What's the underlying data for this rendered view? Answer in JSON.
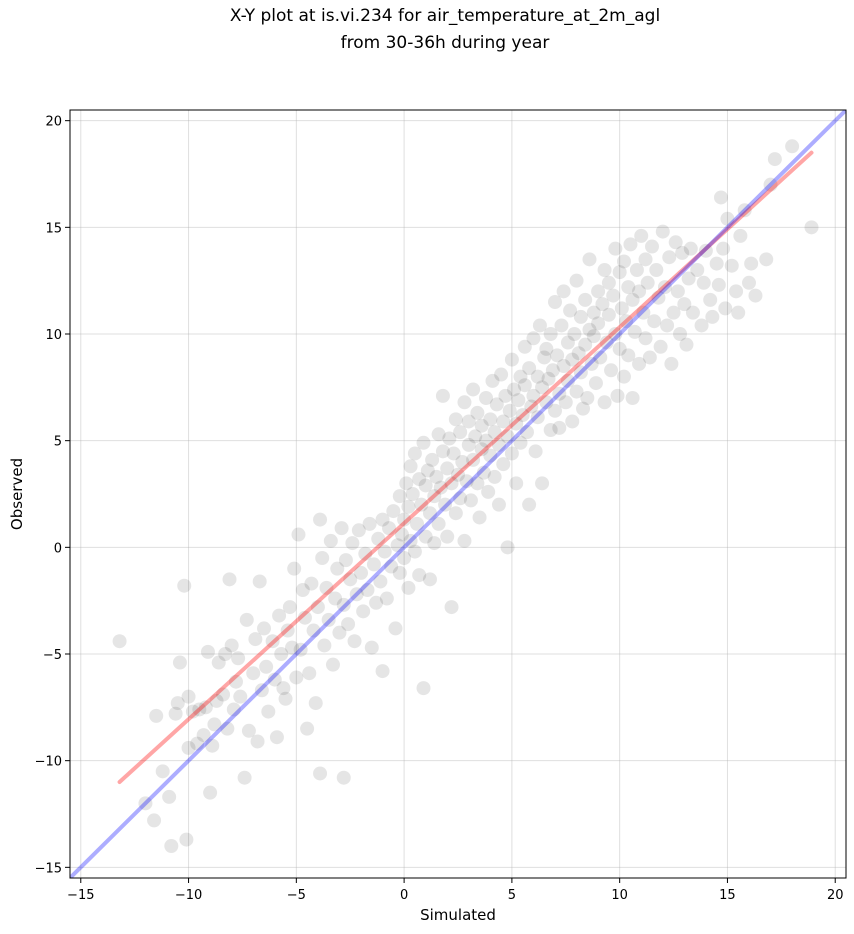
{
  "chart_data": {
    "type": "scatter",
    "title_lines": [
      "X-Y plot at is.vi.234 for air_temperature_at_2m_agl",
      "from 30-36h during year"
    ],
    "xlabel": "Simulated",
    "ylabel": "Observed",
    "xlim": [
      -15.5,
      20.5
    ],
    "ylim": [
      -15.5,
      20.5
    ],
    "x_ticks": [
      -15,
      -10,
      -5,
      0,
      5,
      10,
      15,
      20
    ],
    "y_ticks": [
      -15,
      -10,
      -5,
      0,
      5,
      10,
      15,
      20
    ],
    "x_tick_labels": [
      "−15",
      "−10",
      "−5",
      "0",
      "5",
      "10",
      "15",
      "20"
    ],
    "y_tick_labels": [
      "−15",
      "−10",
      "−5",
      "0",
      "5",
      "10",
      "15",
      "20"
    ],
    "grid": true,
    "point_color": "#000000",
    "point_alpha": 0.1,
    "points": [
      [
        -13.2,
        -4.4
      ],
      [
        -12.0,
        -12.0
      ],
      [
        -11.6,
        -12.8
      ],
      [
        -11.5,
        -7.9
      ],
      [
        -11.2,
        -10.5
      ],
      [
        -10.9,
        -11.7
      ],
      [
        -10.8,
        -14.0
      ],
      [
        -10.6,
        -7.8
      ],
      [
        -10.5,
        -7.3
      ],
      [
        -10.4,
        -5.4
      ],
      [
        -10.2,
        -1.8
      ],
      [
        -10.1,
        -13.7
      ],
      [
        -10.0,
        -9.4
      ],
      [
        -10.0,
        -7.0
      ],
      [
        -9.8,
        -7.7
      ],
      [
        -9.6,
        -9.2
      ],
      [
        -9.5,
        -7.6
      ],
      [
        -9.3,
        -8.8
      ],
      [
        -9.2,
        -7.5
      ],
      [
        -9.1,
        -4.9
      ],
      [
        -9.0,
        -11.5
      ],
      [
        -8.9,
        -9.3
      ],
      [
        -8.8,
        -8.3
      ],
      [
        -8.7,
        -7.2
      ],
      [
        -8.6,
        -5.4
      ],
      [
        -8.4,
        -6.9
      ],
      [
        -8.3,
        -5.0
      ],
      [
        -8.2,
        -8.5
      ],
      [
        -8.1,
        -1.5
      ],
      [
        -8.0,
        -4.6
      ],
      [
        -7.9,
        -7.6
      ],
      [
        -7.8,
        -6.3
      ],
      [
        -7.7,
        -5.2
      ],
      [
        -7.6,
        -7.0
      ],
      [
        -7.4,
        -10.8
      ],
      [
        -7.3,
        -3.4
      ],
      [
        -7.2,
        -8.6
      ],
      [
        -7.0,
        -5.9
      ],
      [
        -6.9,
        -4.3
      ],
      [
        -6.8,
        -9.1
      ],
      [
        -6.7,
        -1.6
      ],
      [
        -6.6,
        -6.7
      ],
      [
        -6.5,
        -3.8
      ],
      [
        -6.4,
        -5.6
      ],
      [
        -6.3,
        -7.7
      ],
      [
        -6.1,
        -4.4
      ],
      [
        -6.0,
        -6.2
      ],
      [
        -5.9,
        -8.9
      ],
      [
        -5.8,
        -3.2
      ],
      [
        -5.7,
        -5.0
      ],
      [
        -5.6,
        -6.6
      ],
      [
        -5.5,
        -7.1
      ],
      [
        -5.4,
        -3.9
      ],
      [
        -5.3,
        -2.8
      ],
      [
        -5.2,
        -4.7
      ],
      [
        -5.1,
        -1.0
      ],
      [
        -5.0,
        -6.1
      ],
      [
        -4.9,
        0.6
      ],
      [
        -4.8,
        -4.8
      ],
      [
        -4.7,
        -2.0
      ],
      [
        -4.6,
        -3.3
      ],
      [
        -4.5,
        -8.5
      ],
      [
        -4.4,
        -5.9
      ],
      [
        -4.3,
        -1.7
      ],
      [
        -4.2,
        -3.9
      ],
      [
        -4.1,
        -7.3
      ],
      [
        -4.0,
        -2.8
      ],
      [
        -3.9,
        -10.6
      ],
      [
        -3.9,
        1.3
      ],
      [
        -3.8,
        -0.5
      ],
      [
        -3.7,
        -4.6
      ],
      [
        -3.6,
        -1.9
      ],
      [
        -3.5,
        -3.4
      ],
      [
        -3.4,
        0.3
      ],
      [
        -3.3,
        -5.5
      ],
      [
        -3.2,
        -2.4
      ],
      [
        -3.1,
        -1.0
      ],
      [
        -3.0,
        -4.0
      ],
      [
        -2.9,
        0.9
      ],
      [
        -2.8,
        -10.8
      ],
      [
        -2.8,
        -2.7
      ],
      [
        -2.7,
        -0.6
      ],
      [
        -2.6,
        -3.6
      ],
      [
        -2.5,
        -1.5
      ],
      [
        -2.4,
        0.2
      ],
      [
        -2.3,
        -4.4
      ],
      [
        -2.2,
        -2.2
      ],
      [
        -2.1,
        0.8
      ],
      [
        -2.0,
        -1.2
      ],
      [
        -1.9,
        -3.0
      ],
      [
        -1.8,
        -0.3
      ],
      [
        -1.7,
        -2.0
      ],
      [
        -1.6,
        1.1
      ],
      [
        -1.5,
        -4.7
      ],
      [
        -1.4,
        -0.8
      ],
      [
        -1.3,
        -2.6
      ],
      [
        -1.2,
        0.4
      ],
      [
        -1.1,
        -1.6
      ],
      [
        -1.0,
        -5.8
      ],
      [
        -1.0,
        1.3
      ],
      [
        -0.9,
        -0.2
      ],
      [
        -0.8,
        -2.4
      ],
      [
        -0.7,
        0.9
      ],
      [
        -0.6,
        -0.9
      ],
      [
        -0.5,
        1.7
      ],
      [
        -0.4,
        -3.8
      ],
      [
        -0.3,
        0.1
      ],
      [
        -0.2,
        -1.2
      ],
      [
        -0.2,
        2.4
      ],
      [
        -0.1,
        0.6
      ],
      [
        0.0,
        1.3
      ],
      [
        0.0,
        -0.5
      ],
      [
        0.1,
        3.0
      ],
      [
        0.2,
        -1.9
      ],
      [
        0.2,
        1.9
      ],
      [
        0.3,
        0.3
      ],
      [
        0.3,
        3.8
      ],
      [
        0.4,
        2.5
      ],
      [
        0.5,
        -0.2
      ],
      [
        0.5,
        4.4
      ],
      [
        0.6,
        1.1
      ],
      [
        0.7,
        3.2
      ],
      [
        0.7,
        -1.3
      ],
      [
        0.8,
        2.0
      ],
      [
        0.9,
        -6.6
      ],
      [
        0.9,
        4.9
      ],
      [
        1.0,
        0.5
      ],
      [
        1.0,
        2.9
      ],
      [
        1.1,
        3.6
      ],
      [
        1.2,
        1.6
      ],
      [
        1.2,
        -1.5
      ],
      [
        1.3,
        4.1
      ],
      [
        1.4,
        2.4
      ],
      [
        1.4,
        0.2
      ],
      [
        1.5,
        3.3
      ],
      [
        1.6,
        5.3
      ],
      [
        1.6,
        1.1
      ],
      [
        1.7,
        2.8
      ],
      [
        1.8,
        4.5
      ],
      [
        1.8,
        7.1
      ],
      [
        1.9,
        2.0
      ],
      [
        2.0,
        3.7
      ],
      [
        2.0,
        0.5
      ],
      [
        2.1,
        5.1
      ],
      [
        2.2,
        3.0
      ],
      [
        2.2,
        -2.8
      ],
      [
        2.3,
        4.4
      ],
      [
        2.4,
        1.6
      ],
      [
        2.4,
        6.0
      ],
      [
        2.5,
        3.4
      ],
      [
        2.6,
        5.4
      ],
      [
        2.6,
        2.3
      ],
      [
        2.7,
        4.0
      ],
      [
        2.8,
        0.3
      ],
      [
        2.8,
        6.8
      ],
      [
        2.9,
        3.1
      ],
      [
        3.0,
        4.8
      ],
      [
        3.0,
        5.9
      ],
      [
        3.1,
        2.2
      ],
      [
        3.2,
        4.1
      ],
      [
        3.2,
        7.4
      ],
      [
        3.3,
        5.2
      ],
      [
        3.4,
        3.0
      ],
      [
        3.4,
        6.3
      ],
      [
        3.5,
        1.4
      ],
      [
        3.6,
        4.6
      ],
      [
        3.6,
        5.7
      ],
      [
        3.7,
        3.5
      ],
      [
        3.8,
        7.0
      ],
      [
        3.8,
        5.0
      ],
      [
        3.9,
        2.6
      ],
      [
        4.0,
        6.0
      ],
      [
        4.0,
        4.3
      ],
      [
        4.1,
        7.8
      ],
      [
        4.2,
        3.3
      ],
      [
        4.2,
        5.4
      ],
      [
        4.3,
        6.7
      ],
      [
        4.4,
        2.0
      ],
      [
        4.4,
        4.8
      ],
      [
        4.5,
        8.1
      ],
      [
        4.6,
        5.9
      ],
      [
        4.6,
        3.9
      ],
      [
        4.7,
        7.1
      ],
      [
        4.8,
        0.0
      ],
      [
        4.8,
        5.2
      ],
      [
        4.9,
        6.4
      ],
      [
        5.0,
        4.4
      ],
      [
        5.0,
        8.8
      ],
      [
        5.1,
        7.4
      ],
      [
        5.2,
        5.8
      ],
      [
        5.2,
        3.0
      ],
      [
        5.3,
        6.9
      ],
      [
        5.4,
        8.0
      ],
      [
        5.4,
        4.9
      ],
      [
        5.5,
        6.2
      ],
      [
        5.6,
        9.4
      ],
      [
        5.6,
        7.6
      ],
      [
        5.7,
        5.4
      ],
      [
        5.8,
        2.0
      ],
      [
        5.8,
        8.4
      ],
      [
        5.9,
        6.6
      ],
      [
        6.0,
        7.1
      ],
      [
        6.0,
        9.8
      ],
      [
        6.1,
        4.5
      ],
      [
        6.2,
        8.0
      ],
      [
        6.2,
        6.1
      ],
      [
        6.3,
        10.4
      ],
      [
        6.4,
        7.5
      ],
      [
        6.4,
        3.0
      ],
      [
        6.5,
        8.9
      ],
      [
        6.6,
        6.8
      ],
      [
        6.6,
        9.3
      ],
      [
        6.7,
        7.9
      ],
      [
        6.8,
        5.5
      ],
      [
        6.8,
        10.0
      ],
      [
        6.9,
        8.3
      ],
      [
        7.0,
        6.4
      ],
      [
        7.0,
        11.5
      ],
      [
        7.1,
        9.0
      ],
      [
        7.2,
        7.2
      ],
      [
        7.2,
        5.6
      ],
      [
        7.3,
        10.4
      ],
      [
        7.4,
        8.5
      ],
      [
        7.4,
        12.0
      ],
      [
        7.5,
        6.8
      ],
      [
        7.6,
        9.6
      ],
      [
        7.6,
        7.8
      ],
      [
        7.7,
        11.1
      ],
      [
        7.8,
        8.8
      ],
      [
        7.8,
        5.9
      ],
      [
        7.9,
        10.0
      ],
      [
        8.0,
        12.5
      ],
      [
        8.0,
        7.3
      ],
      [
        8.1,
        9.1
      ],
      [
        8.2,
        10.8
      ],
      [
        8.2,
        8.2
      ],
      [
        8.3,
        6.5
      ],
      [
        8.4,
        11.6
      ],
      [
        8.4,
        9.5
      ],
      [
        8.5,
        7.0
      ],
      [
        8.6,
        10.2
      ],
      [
        8.6,
        13.5
      ],
      [
        8.7,
        8.6
      ],
      [
        8.8,
        11.0
      ],
      [
        8.8,
        9.9
      ],
      [
        8.9,
        7.7
      ],
      [
        9.0,
        12.0
      ],
      [
        9.0,
        10.5
      ],
      [
        9.1,
        8.9
      ],
      [
        9.2,
        11.4
      ],
      [
        9.3,
        6.8
      ],
      [
        9.3,
        13.0
      ],
      [
        9.4,
        9.6
      ],
      [
        9.5,
        10.9
      ],
      [
        9.5,
        12.4
      ],
      [
        9.6,
        8.3
      ],
      [
        9.7,
        11.8
      ],
      [
        9.8,
        10.0
      ],
      [
        9.8,
        14.0
      ],
      [
        9.9,
        7.1
      ],
      [
        10.0,
        12.9
      ],
      [
        10.0,
        9.3
      ],
      [
        10.1,
        11.2
      ],
      [
        10.2,
        13.4
      ],
      [
        10.2,
        8.0
      ],
      [
        10.3,
        10.6
      ],
      [
        10.4,
        12.2
      ],
      [
        10.4,
        9.0
      ],
      [
        10.5,
        14.2
      ],
      [
        10.6,
        11.6
      ],
      [
        10.6,
        7.0
      ],
      [
        10.7,
        10.1
      ],
      [
        10.8,
        13.0
      ],
      [
        10.9,
        12.0
      ],
      [
        10.9,
        8.6
      ],
      [
        11.0,
        14.6
      ],
      [
        11.1,
        11.0
      ],
      [
        11.2,
        9.8
      ],
      [
        11.2,
        13.5
      ],
      [
        11.3,
        12.4
      ],
      [
        11.4,
        8.9
      ],
      [
        11.5,
        14.1
      ],
      [
        11.6,
        10.6
      ],
      [
        11.7,
        13.0
      ],
      [
        11.8,
        11.7
      ],
      [
        11.9,
        9.4
      ],
      [
        12.0,
        14.8
      ],
      [
        12.1,
        12.2
      ],
      [
        12.2,
        10.4
      ],
      [
        12.3,
        13.6
      ],
      [
        12.4,
        8.6
      ],
      [
        12.5,
        11.0
      ],
      [
        12.6,
        14.3
      ],
      [
        12.7,
        12.0
      ],
      [
        12.8,
        10.0
      ],
      [
        12.9,
        13.8
      ],
      [
        13.0,
        11.4
      ],
      [
        13.1,
        9.5
      ],
      [
        13.2,
        12.6
      ],
      [
        13.3,
        14.0
      ],
      [
        13.4,
        11.0
      ],
      [
        13.6,
        13.0
      ],
      [
        13.8,
        10.4
      ],
      [
        13.9,
        12.4
      ],
      [
        14.0,
        13.9
      ],
      [
        14.2,
        11.6
      ],
      [
        14.3,
        10.8
      ],
      [
        14.5,
        13.3
      ],
      [
        14.6,
        12.3
      ],
      [
        14.7,
        16.4
      ],
      [
        14.8,
        14.0
      ],
      [
        14.9,
        11.2
      ],
      [
        15.0,
        15.4
      ],
      [
        15.2,
        13.2
      ],
      [
        15.4,
        12.0
      ],
      [
        15.5,
        11.0
      ],
      [
        15.6,
        14.6
      ],
      [
        15.8,
        15.8
      ],
      [
        16.0,
        12.4
      ],
      [
        16.1,
        13.3
      ],
      [
        16.3,
        11.8
      ],
      [
        16.8,
        13.5
      ],
      [
        17.0,
        17.0
      ],
      [
        17.2,
        18.2
      ],
      [
        18.0,
        18.8
      ],
      [
        18.9,
        15.0
      ]
    ],
    "lines": [
      {
        "x": [
          -13.2,
          18.9
        ],
        "y": [
          -11.0,
          18.5
        ],
        "color": "#ff0000",
        "alpha": 0.35
      },
      {
        "x": [
          -15.5,
          20.5
        ],
        "y": [
          -15.5,
          20.5
        ],
        "color": "#0000ff",
        "alpha": 0.32
      }
    ]
  }
}
